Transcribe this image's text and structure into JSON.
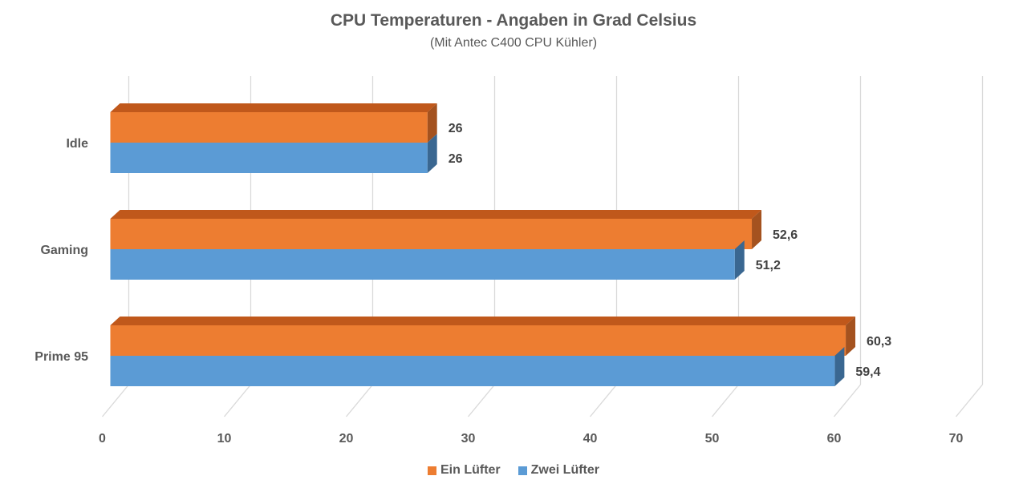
{
  "chart_data": {
    "type": "bar",
    "orientation": "horizontal",
    "style": "3d",
    "title": "CPU Temperaturen - Angaben in Grad Celsius",
    "subtitle": "(Mit Antec C400 CPU Kühler)",
    "categories": [
      "Idle",
      "Gaming",
      "Prime 95"
    ],
    "series": [
      {
        "name": "Ein Lüfter",
        "values": [
          26,
          52.6,
          60.3
        ],
        "labels": [
          "26",
          "52,6",
          "60,3"
        ],
        "color": "#ED7D31",
        "top_color": "#C0581B",
        "side_color": "#A4521F"
      },
      {
        "name": "Zwei Lüfter",
        "values": [
          26,
          51.2,
          59.4
        ],
        "labels": [
          "26",
          "51,2",
          "59,4"
        ],
        "color": "#5B9BD5",
        "top_color": "#4A82B5",
        "side_color": "#3A6791"
      }
    ],
    "xlim": [
      0,
      70
    ],
    "xticks": [
      0,
      10,
      20,
      30,
      40,
      50,
      60,
      70
    ],
    "grid": true,
    "legend_position": "bottom"
  }
}
